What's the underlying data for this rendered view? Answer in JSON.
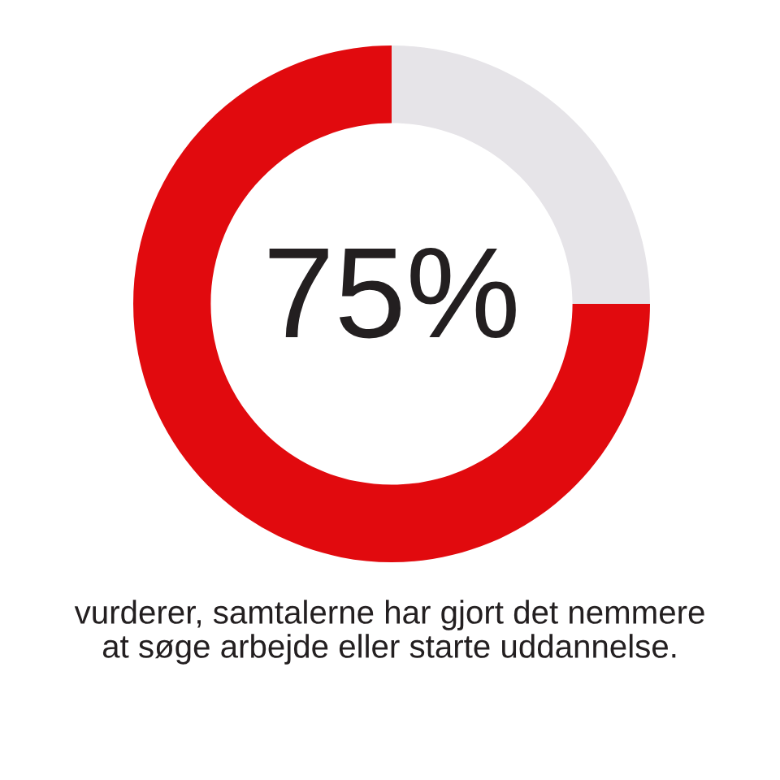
{
  "chart_data": {
    "type": "donut",
    "categories": [
      null,
      null
    ],
    "values": [
      75,
      25
    ],
    "colors": [
      "#e10a0e",
      "#e6e4e8"
    ],
    "value_labels": [
      "75%",
      null
    ],
    "annotations": [
      "vurderer, samtalerne har gjort det nemmere\nat søge arbejde eller starte uddannelse."
    ]
  }
}
